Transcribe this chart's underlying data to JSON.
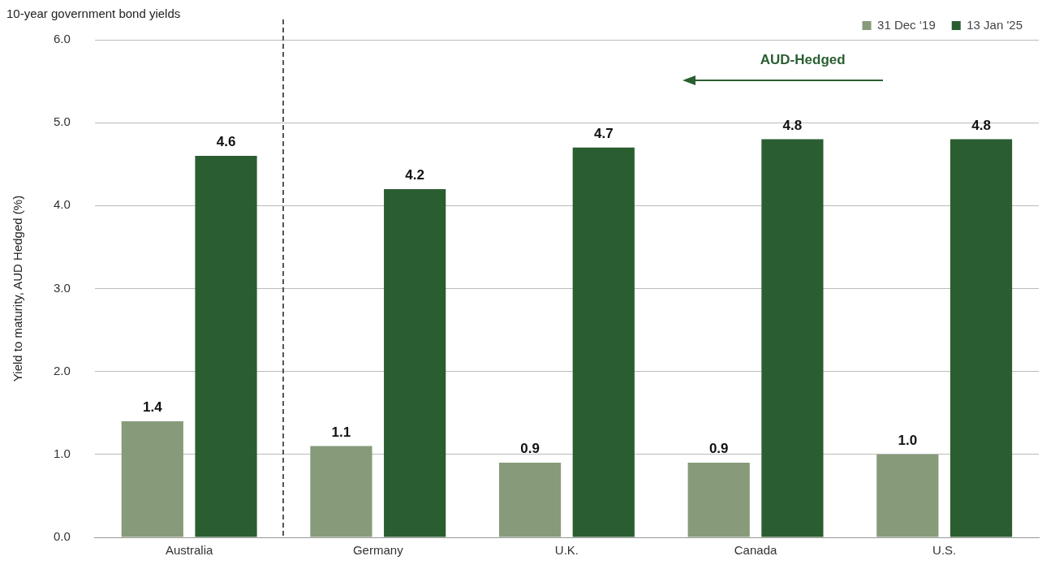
{
  "chart_data": {
    "type": "bar",
    "title": "10-year government bond yields",
    "ylabel": "Yield to maturity, AUD Hedged (%)",
    "categories": [
      "Australia",
      "Germany",
      "U.K.",
      "Canada",
      "U.S."
    ],
    "series": [
      {
        "name": "31 Dec ‘19",
        "color": "#879b7b",
        "values": [
          1.4,
          1.1,
          0.9,
          0.9,
          1.0
        ]
      },
      {
        "name": "13 Jan '25",
        "color": "#2a5e31",
        "values": [
          4.6,
          4.2,
          4.7,
          4.8,
          4.8
        ]
      }
    ],
    "ylim": [
      0,
      6
    ],
    "yticks": [
      {
        "value": 0,
        "label": "0.0"
      },
      {
        "value": 1,
        "label": "1.0"
      },
      {
        "value": 2,
        "label": "2.0"
      },
      {
        "value": 3,
        "label": "3.0"
      },
      {
        "value": 4,
        "label": "4.0"
      },
      {
        "value": 5,
        "label": "5.0"
      },
      {
        "value": 6,
        "label": "6.0"
      }
    ],
    "grid": "y",
    "legend": "top right",
    "value_labels": [
      [
        "1.4",
        "1.1",
        "0.9",
        "0.9",
        "1.0"
      ],
      [
        "4.6",
        "4.2",
        "4.7",
        "4.8",
        "4.8"
      ]
    ],
    "annotations": [
      "AUD-Hedged"
    ]
  }
}
